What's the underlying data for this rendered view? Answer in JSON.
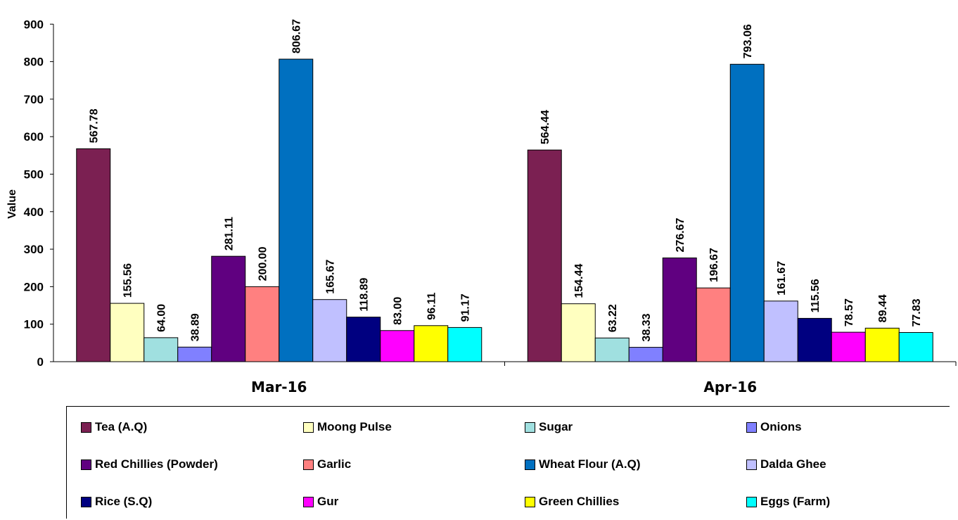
{
  "chart_data": {
    "type": "bar",
    "categories": [
      "Mar-16",
      "Apr-16"
    ],
    "ylabel": "Value",
    "xlabel": "",
    "ylim": [
      0,
      900
    ],
    "yticks": [
      0,
      100,
      200,
      300,
      400,
      500,
      600,
      700,
      800,
      900
    ],
    "legend_position": "bottom",
    "grid": false,
    "series": [
      {
        "name": "Tea (A.Q)",
        "color": "#7B2052",
        "values": [
          567.78,
          564.44
        ],
        "labels": [
          "567.78",
          "564.44"
        ]
      },
      {
        "name": "Moong Pulse",
        "color": "#FFFFC0",
        "values": [
          155.56,
          154.44
        ],
        "labels": [
          "155.56",
          "154.44"
        ]
      },
      {
        "name": "Sugar",
        "color": "#A0E0E0",
        "values": [
          64.0,
          63.22
        ],
        "labels": [
          "64.00",
          "63.22"
        ]
      },
      {
        "name": "Onions",
        "color": "#8080FF",
        "values": [
          38.89,
          38.33
        ],
        "labels": [
          "38.89",
          "38.33"
        ]
      },
      {
        "name": "Red Chillies (Powder)",
        "color": "#600080",
        "values": [
          281.11,
          276.67
        ],
        "labels": [
          "281.11",
          "276.67"
        ]
      },
      {
        "name": "Garlic",
        "color": "#FF8080",
        "values": [
          200.0,
          196.67
        ],
        "labels": [
          "200.00",
          "196.67"
        ]
      },
      {
        "name": "Wheat Flour (A.Q)",
        "color": "#0070C0",
        "values": [
          806.67,
          793.06
        ],
        "labels": [
          "806.67",
          "793.06"
        ]
      },
      {
        "name": "Dalda Ghee",
        "color": "#C0C0FF",
        "values": [
          165.67,
          161.67
        ],
        "labels": [
          "165.67",
          "161.67"
        ]
      },
      {
        "name": "Rice (S.Q)",
        "color": "#000080",
        "values": [
          118.89,
          115.56
        ],
        "labels": [
          "118.89",
          "115.56"
        ]
      },
      {
        "name": "Gur",
        "color": "#FF00FF",
        "values": [
          83.0,
          78.57
        ],
        "labels": [
          "83.00",
          "78.57"
        ]
      },
      {
        "name": "Green Chillies",
        "color": "#FFFF00",
        "values": [
          96.11,
          89.44
        ],
        "labels": [
          "96.11",
          "89.44"
        ]
      },
      {
        "name": "Eggs (Farm)",
        "color": "#00FFFF",
        "values": [
          91.17,
          77.83
        ],
        "labels": [
          "91.17",
          "77.83"
        ]
      }
    ]
  }
}
